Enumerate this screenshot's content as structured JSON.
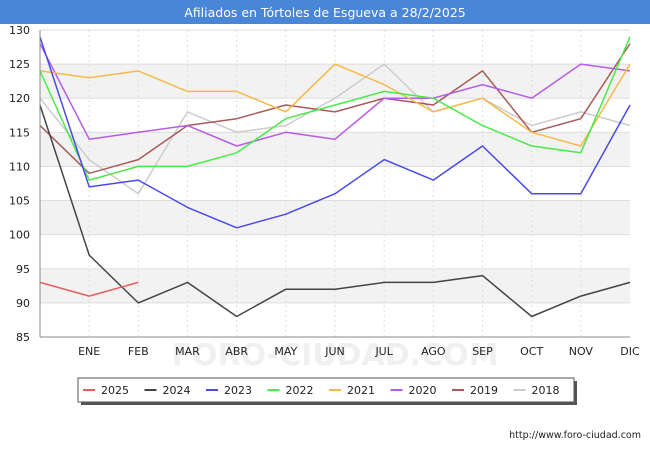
{
  "page": {
    "title": "Afiliados en Tórtoles de Esgueva a 28/2/2025",
    "source": "http://www.foro-ciudad.com",
    "watermark": "FORO-CIUDAD.COM"
  },
  "colors": {
    "title_bg": "#4a86d8",
    "band": "#f2f2f2",
    "grid": "#dddddd"
  },
  "chart_data": {
    "type": "line",
    "categories": [
      "",
      "ENE",
      "FEB",
      "MAR",
      "ABR",
      "MAY",
      "JUN",
      "JUL",
      "AGO",
      "SEP",
      "OCT",
      "NOV",
      "DIC"
    ],
    "ylim": [
      85,
      130
    ],
    "yticks": [
      85,
      90,
      95,
      100,
      105,
      110,
      115,
      120,
      125,
      130
    ],
    "grid": true,
    "legend_position": "bottom",
    "series": [
      {
        "name": "2025",
        "color": "#ec5b5b",
        "values": [
          93,
          91,
          93,
          null,
          null,
          null,
          null,
          null,
          null,
          null,
          null,
          null,
          null
        ]
      },
      {
        "name": "2024",
        "color": "#444444",
        "values": [
          119,
          97,
          90,
          93,
          88,
          92,
          92,
          93,
          93,
          94,
          88,
          91,
          93
        ]
      },
      {
        "name": "2023",
        "color": "#4a4aea",
        "values": [
          129,
          107,
          108,
          104,
          101,
          103,
          106,
          111,
          108,
          113,
          106,
          106,
          119
        ]
      },
      {
        "name": "2022",
        "color": "#4aea4a",
        "values": [
          124,
          108,
          110,
          110,
          112,
          117,
          119,
          121,
          120,
          116,
          113,
          112,
          129
        ]
      },
      {
        "name": "2021",
        "color": "#f5b94a",
        "values": [
          124,
          123,
          124,
          121,
          121,
          118,
          125,
          122,
          118,
          120,
          115,
          113,
          125
        ]
      },
      {
        "name": "2020",
        "color": "#b85ce8",
        "values": [
          128,
          114,
          115,
          116,
          113,
          115,
          114,
          120,
          120,
          122,
          120,
          125,
          124
        ]
      },
      {
        "name": "2019",
        "color": "#a85a5a",
        "values": [
          116,
          109,
          111,
          116,
          117,
          119,
          118,
          120,
          119,
          124,
          115,
          117,
          128
        ]
      },
      {
        "name": "2018",
        "color": "#cccccc",
        "values": [
          120,
          111,
          106,
          118,
          115,
          116,
          120,
          125,
          118,
          120,
          116,
          118,
          116
        ]
      }
    ]
  }
}
